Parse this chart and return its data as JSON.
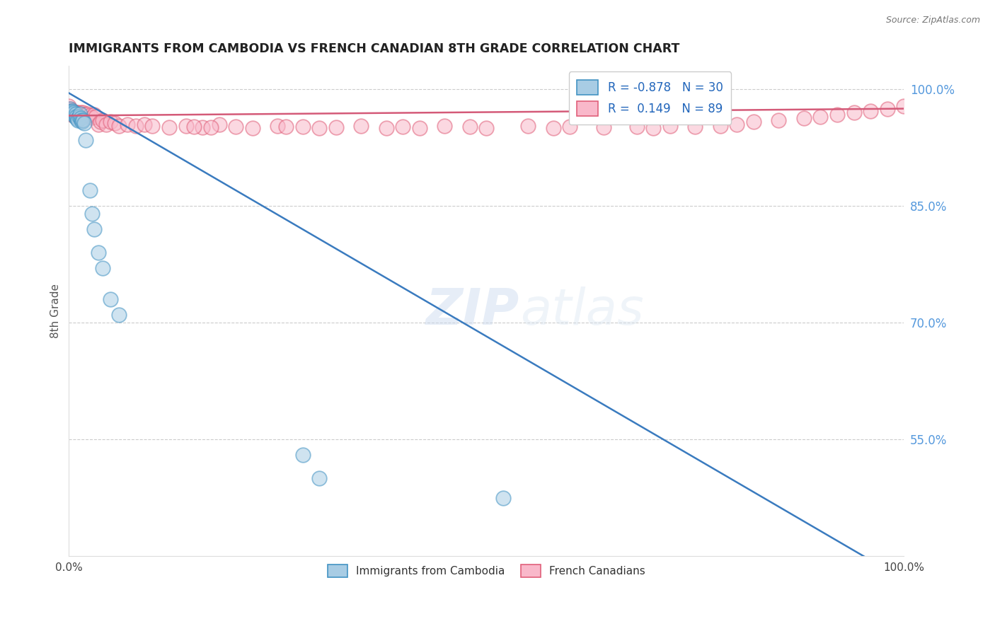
{
  "title": "IMMIGRANTS FROM CAMBODIA VS FRENCH CANADIAN 8TH GRADE CORRELATION CHART",
  "source": "Source: ZipAtlas.com",
  "ylabel": "8th Grade",
  "right_yticks": [
    0.55,
    0.7,
    0.85,
    1.0
  ],
  "right_ytick_labels": [
    "55.0%",
    "70.0%",
    "85.0%",
    "100.0%"
  ],
  "legend_blue_r": "-0.878",
  "legend_blue_n": "30",
  "legend_pink_r": "0.149",
  "legend_pink_n": "89",
  "blue_fill_color": "#a8cce4",
  "blue_edge_color": "#4393c3",
  "pink_fill_color": "#f9b8ca",
  "pink_edge_color": "#e0607a",
  "blue_line_color": "#3a7bbf",
  "pink_line_color": "#d45a78",
  "watermark_zip": "ZIP",
  "watermark_atlas": "atlas",
  "xlim": [
    0.0,
    1.0
  ],
  "ylim": [
    0.4,
    1.03
  ],
  "grid_color": "#cccccc",
  "blue_scatter_x": [
    0.001,
    0.002,
    0.002,
    0.003,
    0.004,
    0.005,
    0.006,
    0.007,
    0.008,
    0.009,
    0.01,
    0.011,
    0.012,
    0.013,
    0.014,
    0.015,
    0.016,
    0.017,
    0.018,
    0.02,
    0.025,
    0.028,
    0.03,
    0.035,
    0.04,
    0.05,
    0.06,
    0.28,
    0.3,
    0.52
  ],
  "blue_scatter_y": [
    0.975,
    0.972,
    0.97,
    0.97,
    0.972,
    0.968,
    0.97,
    0.965,
    0.968,
    0.965,
    0.962,
    0.96,
    0.965,
    0.968,
    0.963,
    0.96,
    0.958,
    0.96,
    0.956,
    0.935,
    0.87,
    0.84,
    0.82,
    0.79,
    0.77,
    0.73,
    0.71,
    0.53,
    0.5,
    0.475
  ],
  "pink_scatter_x": [
    0.0,
    0.0,
    0.001,
    0.001,
    0.001,
    0.002,
    0.002,
    0.002,
    0.003,
    0.003,
    0.003,
    0.004,
    0.004,
    0.004,
    0.005,
    0.005,
    0.006,
    0.006,
    0.007,
    0.007,
    0.008,
    0.008,
    0.009,
    0.01,
    0.01,
    0.011,
    0.012,
    0.013,
    0.014,
    0.015,
    0.016,
    0.017,
    0.018,
    0.02,
    0.022,
    0.025,
    0.028,
    0.03,
    0.032,
    0.035,
    0.038,
    0.04,
    0.045,
    0.05,
    0.055,
    0.06,
    0.07,
    0.08,
    0.09,
    0.1,
    0.12,
    0.14,
    0.16,
    0.18,
    0.2,
    0.22,
    0.25,
    0.28,
    0.3,
    0.35,
    0.38,
    0.4,
    0.42,
    0.45,
    0.48,
    0.5,
    0.55,
    0.58,
    0.6,
    0.64,
    0.68,
    0.7,
    0.72,
    0.75,
    0.78,
    0.8,
    0.82,
    0.85,
    0.88,
    0.9,
    0.92,
    0.94,
    0.96,
    0.98,
    1.0,
    0.15,
    0.17,
    0.26,
    0.32
  ],
  "pink_scatter_y": [
    0.978,
    0.972,
    0.975,
    0.97,
    0.968,
    0.972,
    0.97,
    0.968,
    0.972,
    0.97,
    0.968,
    0.97,
    0.968,
    0.972,
    0.97,
    0.968,
    0.97,
    0.966,
    0.97,
    0.968,
    0.97,
    0.967,
    0.97,
    0.967,
    0.97,
    0.967,
    0.967,
    0.968,
    0.97,
    0.967,
    0.968,
    0.97,
    0.967,
    0.967,
    0.968,
    0.966,
    0.964,
    0.967,
    0.965,
    0.955,
    0.958,
    0.96,
    0.955,
    0.958,
    0.956,
    0.953,
    0.955,
    0.953,
    0.955,
    0.953,
    0.951,
    0.953,
    0.951,
    0.955,
    0.952,
    0.95,
    0.953,
    0.952,
    0.95,
    0.953,
    0.95,
    0.952,
    0.95,
    0.953,
    0.952,
    0.95,
    0.953,
    0.95,
    0.952,
    0.951,
    0.952,
    0.95,
    0.953,
    0.952,
    0.953,
    0.955,
    0.958,
    0.96,
    0.963,
    0.965,
    0.967,
    0.97,
    0.972,
    0.975,
    0.978,
    0.952,
    0.951,
    0.952,
    0.951
  ],
  "blue_line_x": [
    0.0,
    1.0
  ],
  "blue_line_y": [
    0.995,
    0.37
  ],
  "pink_line_x": [
    0.0,
    1.0
  ],
  "pink_line_y": [
    0.966,
    0.975
  ]
}
